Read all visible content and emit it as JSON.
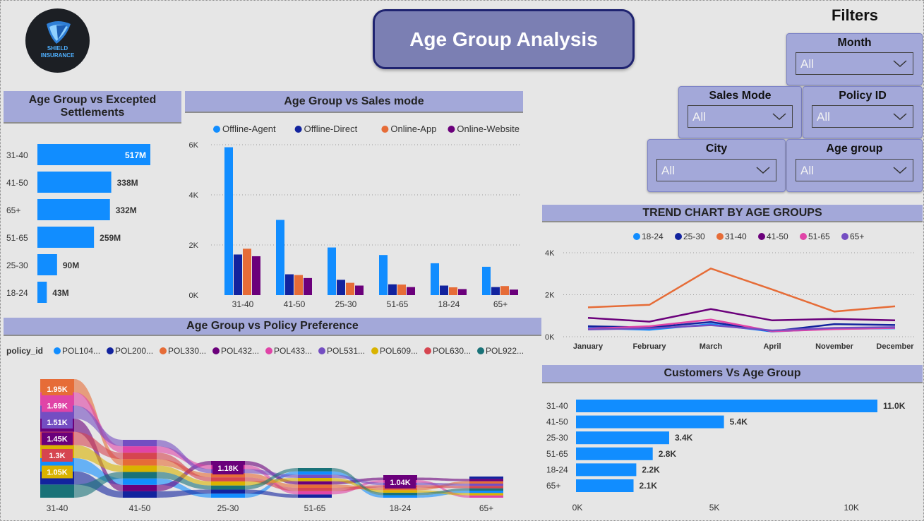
{
  "header": {
    "logo_line1": "SHIELD",
    "logo_line2": "INSURANCE",
    "title": "Age Group Analysis",
    "filters_title": "Filters"
  },
  "filters": [
    {
      "id": "month",
      "label": "Month",
      "value": "All"
    },
    {
      "id": "sales-mode",
      "label": "Sales Mode",
      "value": "All"
    },
    {
      "id": "policy-id",
      "label": "Policy ID",
      "value": "All"
    },
    {
      "id": "city",
      "label": "City",
      "value": "All"
    },
    {
      "id": "age-group",
      "label": "Age group",
      "value": "All"
    }
  ],
  "colors": {
    "blue": "#118dff",
    "navy": "#12239e",
    "orange": "#e66c37",
    "purple": "#6b007b",
    "pink": "#e044a7",
    "violet": "#744ec2",
    "yellow": "#d9b300",
    "red": "#d64550",
    "teal": "#197278",
    "panel": "#a3a8d9"
  },
  "chart_data": [
    {
      "id": "settlements",
      "type": "bar",
      "orientation": "horizontal",
      "title": "Age Group vs Excepted Settlements",
      "categories": [
        "31-40",
        "41-50",
        "65+",
        "51-65",
        "25-30",
        "18-24"
      ],
      "values": [
        517,
        338,
        332,
        259,
        90,
        43
      ],
      "labels": [
        "517M",
        "338M",
        "332M",
        "259M",
        "90M",
        "43M"
      ],
      "unit": "M"
    },
    {
      "id": "sales-mode",
      "type": "bar",
      "title": "Age Group vs Sales mode",
      "categories": [
        "31-40",
        "41-50",
        "25-30",
        "51-65",
        "18-24",
        "65+"
      ],
      "series": [
        {
          "name": "Offline-Agent",
          "color": "#118dff",
          "values": [
            5900,
            3000,
            1900,
            1600,
            1270,
            1130
          ]
        },
        {
          "name": "Offline-Direct",
          "color": "#12239e",
          "values": [
            1620,
            830,
            610,
            430,
            380,
            320
          ]
        },
        {
          "name": "Online-App",
          "color": "#e66c37",
          "values": [
            1850,
            800,
            490,
            420,
            310,
            360
          ]
        },
        {
          "name": "Online-Website",
          "color": "#6b007b",
          "values": [
            1550,
            680,
            380,
            320,
            240,
            220
          ]
        }
      ],
      "yticks": [
        "0K",
        "2K",
        "4K",
        "6K"
      ],
      "ylim": [
        0,
        6000
      ]
    },
    {
      "id": "policy-preference",
      "type": "area",
      "subtype": "ribbon",
      "title": "Age Group vs Policy Preference",
      "legend_title": "policy_id",
      "categories": [
        "31-40",
        "41-50",
        "25-30",
        "51-65",
        "18-24",
        "65+"
      ],
      "series": [
        {
          "name": "POL104...",
          "color": "#118dff"
        },
        {
          "name": "POL200...",
          "color": "#12239e"
        },
        {
          "name": "POL330...",
          "color": "#e66c37"
        },
        {
          "name": "POL432...",
          "color": "#6b007b"
        },
        {
          "name": "POL433...",
          "color": "#e044a7"
        },
        {
          "name": "POL531...",
          "color": "#744ec2"
        },
        {
          "name": "POL609...",
          "color": "#d9b300"
        },
        {
          "name": "POL630...",
          "color": "#d64550"
        },
        {
          "name": "POL922...",
          "color": "#197278"
        }
      ],
      "data_labels": [
        {
          "category": "31-40",
          "text": "1.95K",
          "series": "POL330...",
          "value": 1950
        },
        {
          "category": "31-40",
          "text": "1.69K",
          "series": "POL433...",
          "value": 1690
        },
        {
          "category": "31-40",
          "text": "1.51K",
          "series": "POL531...",
          "value": 1510
        },
        {
          "category": "31-40",
          "text": "1.45K",
          "series": "POL432...",
          "value": 1450
        },
        {
          "category": "31-40",
          "text": "1.3K",
          "series": "POL630...",
          "value": 1300
        },
        {
          "category": "31-40",
          "text": "1.05K",
          "series": "POL609...",
          "value": 1050
        },
        {
          "category": "25-30",
          "text": "1.18K",
          "series": "POL432...",
          "value": 1180
        },
        {
          "category": "18-24",
          "text": "1.04K",
          "series": "POL432...",
          "value": 1040
        }
      ]
    },
    {
      "id": "trend",
      "type": "line",
      "title": "TREND CHART BY AGE GROUPS",
      "categories": [
        "January",
        "February",
        "March",
        "April",
        "November",
        "December"
      ],
      "series": [
        {
          "name": "18-24",
          "color": "#118dff",
          "values": [
            420,
            330,
            600,
            250,
            380,
            400
          ]
        },
        {
          "name": "25-30",
          "color": "#12239e",
          "values": [
            500,
            440,
            700,
            260,
            600,
            560
          ]
        },
        {
          "name": "31-40",
          "color": "#e66c37",
          "values": [
            1400,
            1520,
            3250,
            2250,
            1200,
            1450
          ]
        },
        {
          "name": "41-50",
          "color": "#6b007b",
          "values": [
            900,
            720,
            1320,
            780,
            850,
            780
          ]
        },
        {
          "name": "51-65",
          "color": "#e044a7",
          "values": [
            380,
            500,
            820,
            260,
            360,
            420
          ]
        },
        {
          "name": "65+",
          "color": "#744ec2",
          "values": [
            350,
            400,
            550,
            300,
            420,
            460
          ]
        }
      ],
      "yticks": [
        "0K",
        "2K",
        "4K"
      ],
      "ylim": [
        0,
        4000
      ]
    },
    {
      "id": "customers",
      "type": "bar",
      "orientation": "horizontal",
      "title": "Customers Vs Age Group",
      "categories": [
        "31-40",
        "41-50",
        "25-30",
        "51-65",
        "18-24",
        "65+"
      ],
      "values": [
        11000,
        5400,
        3400,
        2800,
        2200,
        2100
      ],
      "labels": [
        "11.0K",
        "5.4K",
        "3.4K",
        "2.8K",
        "2.2K",
        "2.1K"
      ],
      "xticks": [
        "0K",
        "5K",
        "10K"
      ],
      "xlim": [
        0,
        11000
      ]
    }
  ]
}
